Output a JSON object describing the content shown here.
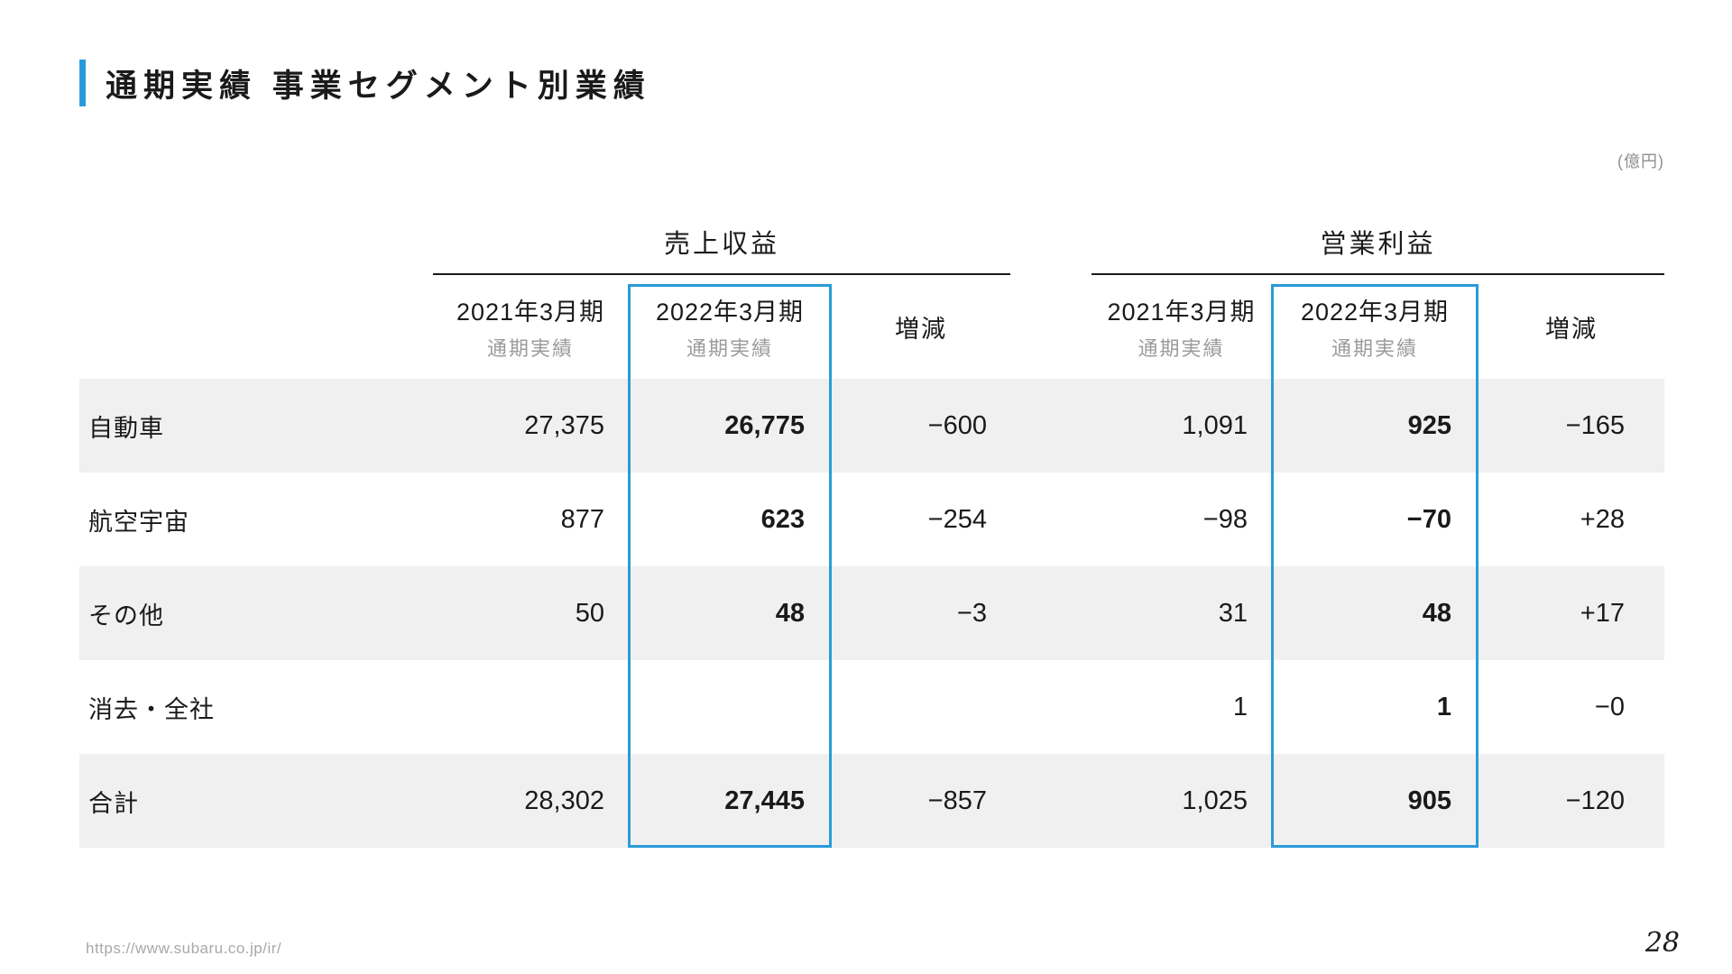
{
  "slide": {
    "title": "通期実績 事業セグメント別業績",
    "unit_label": "(億円)",
    "footer_url": "https://www.subaru.co.jp/ir/",
    "page_number": "28"
  },
  "table": {
    "groups": {
      "revenue": "売上収益",
      "operating_profit": "営業利益"
    },
    "headers": {
      "fy2021_line1": "2021年3月期",
      "fy2021_line2": "通期実績",
      "fy2022_line1": "2022年3月期",
      "fy2022_line2": "通期実績",
      "change": "増減"
    },
    "rows": [
      {
        "label": "自動車",
        "rev_2021": "27,375",
        "rev_2022": "26,775",
        "rev_chg": "−600",
        "op_2021": "1,091",
        "op_2022": "925",
        "op_chg": "−165"
      },
      {
        "label": "航空宇宙",
        "rev_2021": "877",
        "rev_2022": "623",
        "rev_chg": "−254",
        "op_2021": "−98",
        "op_2022": "−70",
        "op_chg": "+28"
      },
      {
        "label": "その他",
        "rev_2021": "50",
        "rev_2022": "48",
        "rev_chg": "−3",
        "op_2021": "31",
        "op_2022": "48",
        "op_chg": "+17"
      },
      {
        "label": "消去・全社",
        "rev_2021": "",
        "rev_2022": "",
        "rev_chg": "",
        "op_2021": "1",
        "op_2022": "1",
        "op_chg": "−0"
      },
      {
        "label": "合計",
        "rev_2021": "28,302",
        "rev_2022": "27,445",
        "rev_chg": "−857",
        "op_2021": "1,025",
        "op_2022": "905",
        "op_chg": "−120"
      }
    ]
  },
  "colors": {
    "accent_blue": "#2a9bd8",
    "row_stripe": "#f0f0f0",
    "subtext_gray": "#9b9b9b"
  }
}
